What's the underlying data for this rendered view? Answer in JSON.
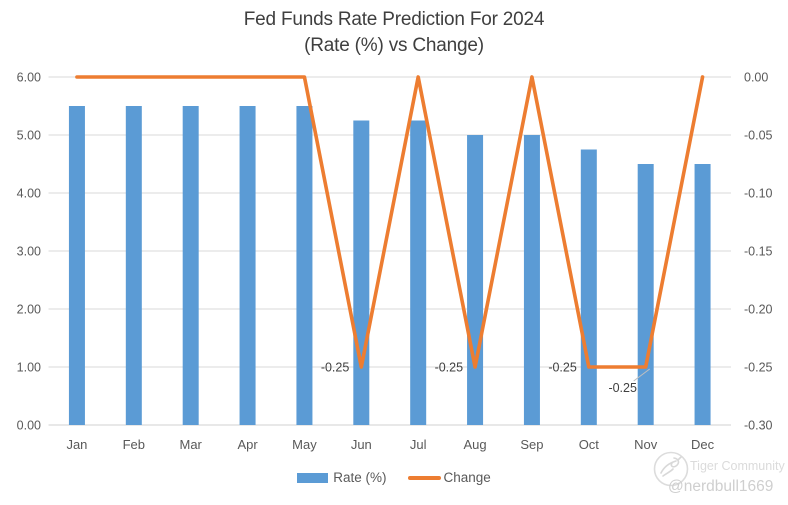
{
  "title": {
    "line1": "Fed Funds Rate Prediction For 2024",
    "line2": "(Rate (%) vs Change)"
  },
  "legend": {
    "items": [
      {
        "label": "Rate (%)",
        "marker": "bar-swatch",
        "color": "#5B9BD5"
      },
      {
        "label": "Change",
        "marker": "line-swatch",
        "color": "#ED7D31"
      }
    ]
  },
  "watermark": {
    "brand": "Tiger Community",
    "handle": "@nerdbull1669",
    "logo_icon": "tiger-logo-icon"
  },
  "chart_data": {
    "type": "combo",
    "title": "Fed Funds Rate Prediction For 2024 (Rate (%) vs Change)",
    "categories": [
      "Jan",
      "Feb",
      "Mar",
      "Apr",
      "May",
      "Jun",
      "Jul",
      "Aug",
      "Sep",
      "Oct",
      "Nov",
      "Dec"
    ],
    "series": [
      {
        "name": "Rate (%)",
        "type": "bar",
        "axis": "left",
        "color": "#5B9BD5",
        "values": [
          5.5,
          5.5,
          5.5,
          5.5,
          5.5,
          5.25,
          5.25,
          5.0,
          5.0,
          4.75,
          4.5,
          4.5
        ]
      },
      {
        "name": "Change",
        "type": "line",
        "axis": "right",
        "color": "#ED7D31",
        "values": [
          0.0,
          0.0,
          0.0,
          0.0,
          0.0,
          -0.25,
          0.0,
          -0.25,
          0.0,
          -0.25,
          -0.25,
          0.0
        ],
        "data_labels": [
          {
            "index": 5,
            "text": "-0.25",
            "placement": "left",
            "leader": false
          },
          {
            "index": 7,
            "text": "-0.25",
            "placement": "left",
            "leader": false
          },
          {
            "index": 9,
            "text": "-0.25",
            "placement": "left",
            "leader": false
          },
          {
            "index": 10,
            "text": "-0.25",
            "placement": "below",
            "leader": true
          }
        ]
      }
    ],
    "left_axis": {
      "min": 0,
      "max": 6,
      "ticks": [
        "6.00",
        "5.00",
        "4.00",
        "3.00",
        "2.00",
        "1.00",
        "0.00"
      ]
    },
    "right_axis": {
      "min": -0.3,
      "max": 0,
      "ticks": [
        "0.00",
        "-0.05",
        "-0.10",
        "-0.15",
        "-0.20",
        "-0.25",
        "-0.30"
      ]
    },
    "grid": true,
    "legend_position": "bottom",
    "colors": {
      "bar": "#5B9BD5",
      "line": "#ED7D31",
      "grid": "#D9D9D9",
      "axis_text": "#595959",
      "data_label_text": "#404040",
      "leader_line": "#bfbfbf"
    }
  }
}
